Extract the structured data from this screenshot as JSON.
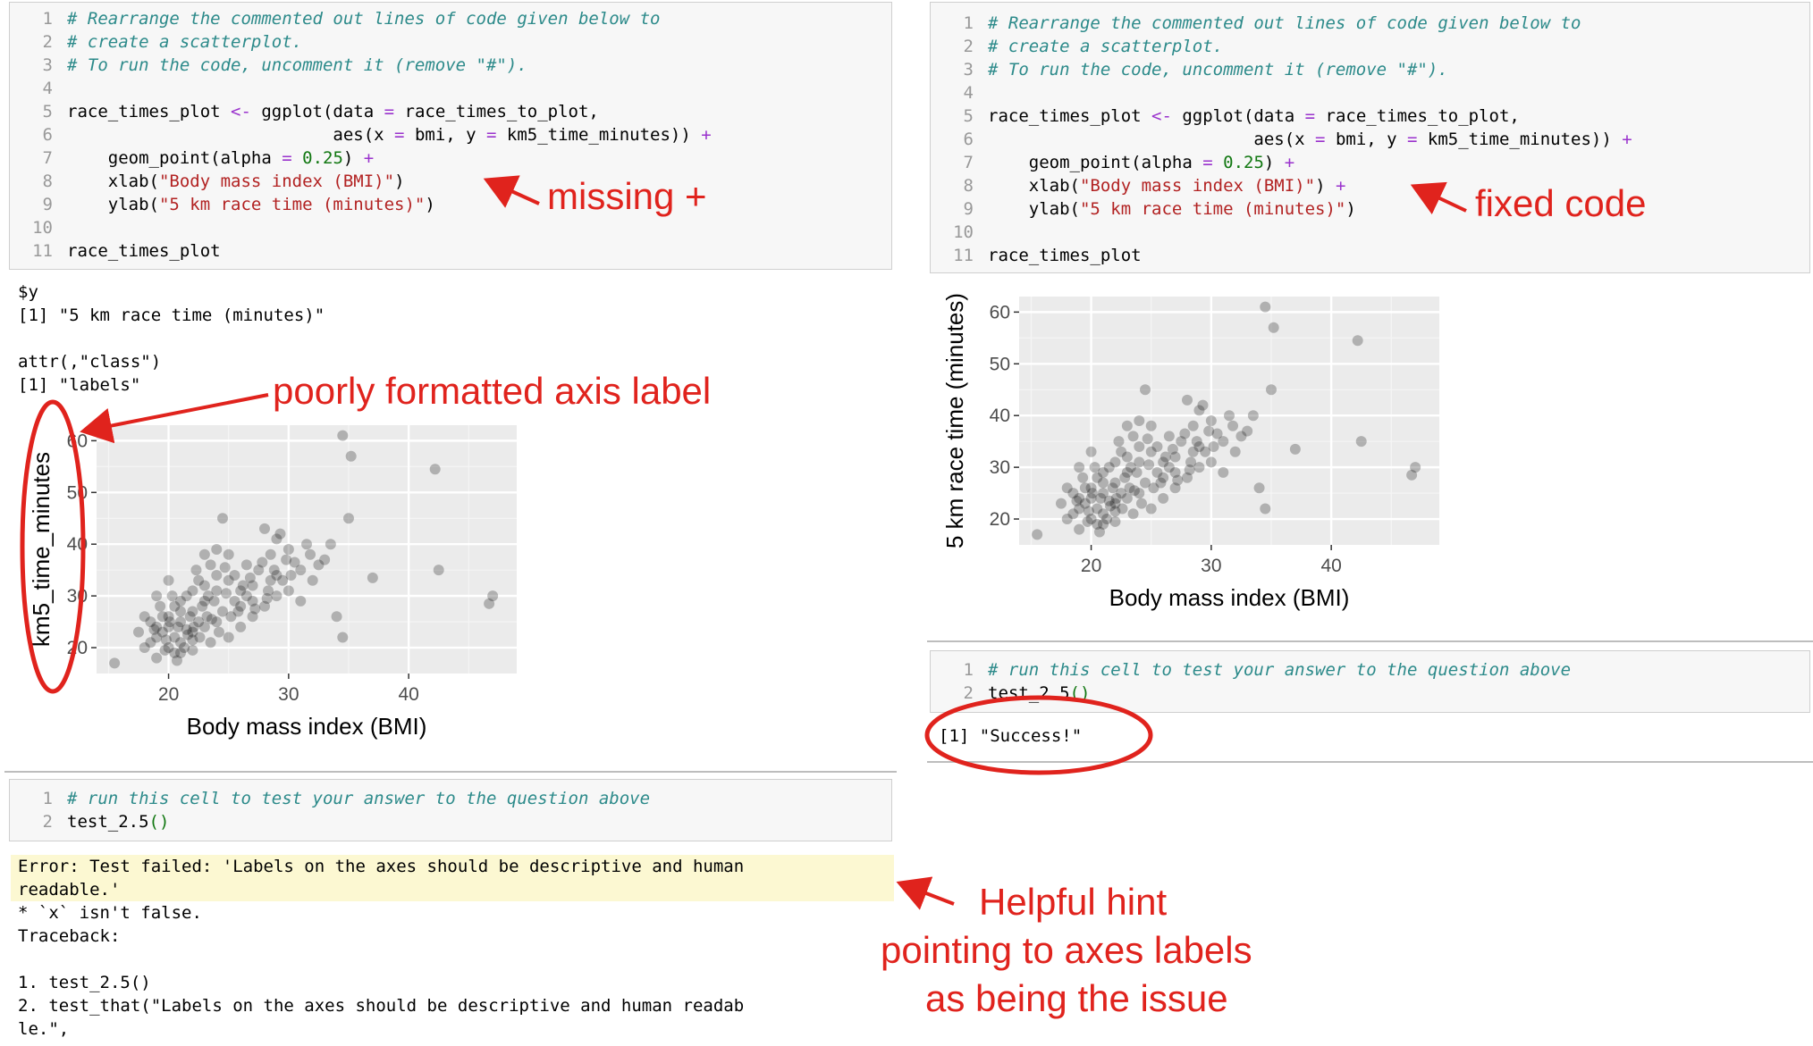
{
  "left_panel": {
    "code_cell": {
      "line_numbers": [
        "1",
        "2",
        "3",
        "4",
        "5",
        "6",
        "7",
        "8",
        "9",
        "10",
        "11"
      ],
      "comment_1": "# Rearrange the commented out lines of code given below to",
      "comment_2": "# create a scatterplot.",
      "comment_3": "# To run the code, uncomment it (remove \"#\").",
      "line5_a": "race_times_plot ",
      "line5_op": "<-",
      "line5_b": " ggplot(data ",
      "line5_eq": "=",
      "line5_c": " race_times_to_plot,",
      "line6_a": "                          aes(x ",
      "line6_eq1": "=",
      "line6_b": " bmi, y ",
      "line6_eq2": "=",
      "line6_c": " km5_time_minutes)) ",
      "line6_plus": "+",
      "line7_a": "    geom_point(alpha ",
      "line7_eq": "=",
      "line7_num": "0.25",
      "line7_b": ") ",
      "line7_plus": "+",
      "line8_a": "    xlab(",
      "line8_str": "\"Body mass index (BMI)\"",
      "line8_b": ")",
      "line9_a": "    ylab(",
      "line9_str": "\"5 km race time (minutes)\"",
      "line9_b": ")",
      "line11": "race_times_plot"
    },
    "output_lines": [
      "$y",
      "[1] \"5 km race time (minutes)\"",
      "",
      "attr(,\"class\")",
      "[1] \"labels\""
    ],
    "plot": {
      "xlabel": "Body mass index (BMI)",
      "ylabel": "km5_time_minutes",
      "x_ticks": [
        "20",
        "30",
        "40"
      ],
      "y_ticks": [
        "20",
        "30",
        "40",
        "50",
        "60"
      ]
    },
    "test_cell": {
      "line_numbers": [
        "1",
        "2"
      ],
      "comment": "# run this cell to test your answer to the question above",
      "call": "test_2.5",
      "parens": "()"
    },
    "error_lines": [
      "Error: Test failed: 'Labels on the axes should be descriptive and human",
      "readable.'"
    ],
    "traceback_lines": [
      "* `x` isn't false.",
      "Traceback:",
      "",
      "1. test_2.5()",
      "2. test_that(\"Labels on the axes should be descriptive and human readab",
      "le.\","
    ]
  },
  "right_panel": {
    "code_cell": {
      "line_numbers": [
        "1",
        "2",
        "3",
        "4",
        "5",
        "6",
        "7",
        "8",
        "9",
        "10",
        "11"
      ],
      "comment_1": "# Rearrange the commented out lines of code given below to",
      "comment_2": "# create a scatterplot.",
      "comment_3": "# To run the code, uncomment it (remove \"#\").",
      "line5_a": "race_times_plot ",
      "line5_op": "<-",
      "line5_b": " ggplot(data ",
      "line5_eq": "=",
      "line5_c": " race_times_to_plot,",
      "line6_a": "                          aes(x ",
      "line6_eq1": "=",
      "line6_b": " bmi, y ",
      "line6_eq2": "=",
      "line6_c": " km5_time_minutes)) ",
      "line6_plus": "+",
      "line7_a": "    geom_point(alpha ",
      "line7_eq": "=",
      "line7_num": "0.25",
      "line7_b": ") ",
      "line7_plus": "+",
      "line8_a": "    xlab(",
      "line8_str": "\"Body mass index (BMI)\"",
      "line8_b": ") ",
      "line8_plus": "+",
      "line9_a": "    ylab(",
      "line9_str": "\"5 km race time (minutes)\"",
      "line9_b": ")",
      "line11": "race_times_plot"
    },
    "plot": {
      "xlabel": "Body mass index (BMI)",
      "ylabel": "5 km race time (minutes)",
      "x_ticks": [
        "20",
        "30",
        "40"
      ],
      "y_ticks": [
        "20",
        "30",
        "40",
        "50",
        "60"
      ]
    },
    "test_cell": {
      "line_numbers": [
        "1",
        "2"
      ],
      "comment": "# run this cell to test your answer to the question above",
      "call": "test_2.5",
      "parens": "()"
    },
    "output": "[1] \"Success!\""
  },
  "annotations": {
    "missing_plus": "missing +",
    "fixed_code": "fixed code",
    "poor_label": "poorly formatted axis label",
    "hint_1": "Helpful hint",
    "hint_2": "pointing to axes labels",
    "hint_3": "as being the issue"
  },
  "colors": {
    "annotation_red": "#e0231d",
    "comment_teal": "#2c8a8a",
    "string_red": "#b22222",
    "number_green": "#117711",
    "operator_purple": "#9a32cd",
    "panel_grey": "#ebebeb",
    "error_yellow": "#fcf8d2"
  },
  "chart_data": [
    {
      "type": "scatter",
      "xlabel": "Body mass index (BMI)",
      "ylabel": "km5_time_minutes",
      "xlim": [
        14,
        49
      ],
      "ylim": [
        15,
        63
      ],
      "x_ticks": [
        20,
        30,
        40
      ],
      "y_ticks": [
        20,
        30,
        40,
        50,
        60
      ],
      "grid": true,
      "points": [
        [
          15.5,
          17
        ],
        [
          34.5,
          61
        ],
        [
          35.2,
          57
        ],
        [
          42.2,
          54.5
        ],
        [
          42.5,
          35
        ],
        [
          35,
          45
        ],
        [
          37,
          33.5
        ],
        [
          34,
          26
        ],
        [
          34.5,
          22
        ],
        [
          47,
          30
        ],
        [
          46.7,
          28.5
        ],
        [
          24.5,
          45
        ],
        [
          28,
          43
        ],
        [
          29.3,
          42
        ],
        [
          29,
          41
        ],
        [
          30,
          39
        ],
        [
          31.5,
          40
        ],
        [
          32.5,
          36
        ],
        [
          31,
          35
        ],
        [
          29,
          34
        ],
        [
          28.5,
          33
        ],
        [
          27,
          32
        ],
        [
          26.5,
          30
        ],
        [
          25.5,
          34
        ],
        [
          24,
          31
        ],
        [
          23,
          29
        ],
        [
          22,
          27
        ],
        [
          21,
          25
        ],
        [
          20,
          24
        ],
        [
          19.5,
          23
        ],
        [
          19,
          22
        ],
        [
          18.5,
          21
        ],
        [
          18,
          20
        ],
        [
          20.5,
          28
        ],
        [
          21.5,
          30
        ],
        [
          22.5,
          33
        ],
        [
          23.5,
          36
        ],
        [
          20,
          33
        ],
        [
          19,
          30
        ],
        [
          18,
          26
        ],
        [
          17.5,
          23
        ],
        [
          19,
          18
        ],
        [
          20.5,
          19
        ],
        [
          22,
          19.5
        ],
        [
          23.5,
          21
        ],
        [
          25,
          22
        ],
        [
          26,
          24
        ],
        [
          27,
          26
        ],
        [
          28,
          28
        ],
        [
          29,
          30
        ],
        [
          30,
          31
        ],
        [
          24,
          25
        ],
        [
          22,
          23
        ],
        [
          21,
          21
        ],
        [
          20,
          20
        ],
        [
          19.5,
          26
        ],
        [
          21,
          27
        ],
        [
          22.5,
          25
        ],
        [
          23,
          24
        ],
        [
          24.5,
          27
        ],
        [
          25.5,
          29
        ],
        [
          26,
          31
        ],
        [
          27.5,
          35
        ],
        [
          28.5,
          38
        ],
        [
          25,
          38
        ],
        [
          24,
          39
        ],
        [
          23,
          38
        ],
        [
          26.5,
          36
        ],
        [
          33,
          37
        ],
        [
          32,
          33
        ],
        [
          30.5,
          36.5
        ],
        [
          31,
          29
        ],
        [
          20.5,
          22
        ],
        [
          21.5,
          23.5
        ],
        [
          22,
          21.5
        ],
        [
          19,
          24
        ],
        [
          18.5,
          25
        ],
        [
          20,
          26
        ],
        [
          21,
          29
        ],
        [
          22,
          31
        ],
        [
          23,
          32
        ],
        [
          24,
          34
        ],
        [
          25,
          33
        ],
        [
          26,
          28
        ],
        [
          27,
          29
        ],
        [
          28.3,
          31
        ],
        [
          29.5,
          33
        ],
        [
          30.2,
          34
        ],
        [
          21.8,
          26
        ],
        [
          22.8,
          28
        ],
        [
          19.8,
          21.5
        ],
        [
          20.8,
          24
        ],
        [
          23.8,
          29
        ],
        [
          24.8,
          30.5
        ],
        [
          26.8,
          33.5
        ],
        [
          27.8,
          36.5
        ],
        [
          21.3,
          20
        ],
        [
          22.6,
          22
        ],
        [
          23.2,
          26
        ],
        [
          24.2,
          23
        ],
        [
          25.2,
          26
        ],
        [
          19.3,
          28
        ],
        [
          18.8,
          23.5
        ],
        [
          20.3,
          30
        ],
        [
          22.3,
          35
        ],
        [
          23.3,
          30
        ],
        [
          24.7,
          35.5
        ],
        [
          26.2,
          32
        ],
        [
          28.8,
          35
        ],
        [
          29.8,
          37
        ],
        [
          31.8,
          38
        ],
        [
          33.5,
          40
        ],
        [
          21,
          19
        ],
        [
          19.7,
          19.5
        ],
        [
          20.7,
          17.5
        ],
        [
          25.8,
          27
        ],
        [
          27.2,
          27.5
        ],
        [
          28.2,
          29.5
        ],
        [
          22.1,
          24
        ],
        [
          21.6,
          22.5
        ],
        [
          20.1,
          25
        ],
        [
          23.6,
          25.5
        ]
      ]
    },
    {
      "type": "scatter",
      "xlabel": "Body mass index (BMI)",
      "ylabel": "5 km race time (minutes)",
      "xlim": [
        14,
        49
      ],
      "ylim": [
        15,
        63
      ],
      "x_ticks": [
        20,
        30,
        40
      ],
      "y_ticks": [
        20,
        30,
        40,
        50,
        60
      ],
      "grid": true,
      "points": [
        [
          15.5,
          17
        ],
        [
          34.5,
          61
        ],
        [
          35.2,
          57
        ],
        [
          42.2,
          54.5
        ],
        [
          42.5,
          35
        ],
        [
          35,
          45
        ],
        [
          37,
          33.5
        ],
        [
          34,
          26
        ],
        [
          34.5,
          22
        ],
        [
          47,
          30
        ],
        [
          46.7,
          28.5
        ],
        [
          24.5,
          45
        ],
        [
          28,
          43
        ],
        [
          29.3,
          42
        ],
        [
          29,
          41
        ],
        [
          30,
          39
        ],
        [
          31.5,
          40
        ],
        [
          32.5,
          36
        ],
        [
          31,
          35
        ],
        [
          29,
          34
        ],
        [
          28.5,
          33
        ],
        [
          27,
          32
        ],
        [
          26.5,
          30
        ],
        [
          25.5,
          34
        ],
        [
          24,
          31
        ],
        [
          23,
          29
        ],
        [
          22,
          27
        ],
        [
          21,
          25
        ],
        [
          20,
          24
        ],
        [
          19.5,
          23
        ],
        [
          19,
          22
        ],
        [
          18.5,
          21
        ],
        [
          18,
          20
        ],
        [
          20.5,
          28
        ],
        [
          21.5,
          30
        ],
        [
          22.5,
          33
        ],
        [
          23.5,
          36
        ],
        [
          20,
          33
        ],
        [
          19,
          30
        ],
        [
          18,
          26
        ],
        [
          17.5,
          23
        ],
        [
          19,
          18
        ],
        [
          20.5,
          19
        ],
        [
          22,
          19.5
        ],
        [
          23.5,
          21
        ],
        [
          25,
          22
        ],
        [
          26,
          24
        ],
        [
          27,
          26
        ],
        [
          28,
          28
        ],
        [
          29,
          30
        ],
        [
          30,
          31
        ],
        [
          24,
          25
        ],
        [
          22,
          23
        ],
        [
          21,
          21
        ],
        [
          20,
          20
        ],
        [
          19.5,
          26
        ],
        [
          21,
          27
        ],
        [
          22.5,
          25
        ],
        [
          23,
          24
        ],
        [
          24.5,
          27
        ],
        [
          25.5,
          29
        ],
        [
          26,
          31
        ],
        [
          27.5,
          35
        ],
        [
          28.5,
          38
        ],
        [
          25,
          38
        ],
        [
          24,
          39
        ],
        [
          23,
          38
        ],
        [
          26.5,
          36
        ],
        [
          33,
          37
        ],
        [
          32,
          33
        ],
        [
          30.5,
          36.5
        ],
        [
          31,
          29
        ],
        [
          20.5,
          22
        ],
        [
          21.5,
          23.5
        ],
        [
          22,
          21.5
        ],
        [
          19,
          24
        ],
        [
          18.5,
          25
        ],
        [
          20,
          26
        ],
        [
          21,
          29
        ],
        [
          22,
          31
        ],
        [
          23,
          32
        ],
        [
          24,
          34
        ],
        [
          25,
          33
        ],
        [
          26,
          28
        ],
        [
          27,
          29
        ],
        [
          28.3,
          31
        ],
        [
          29.5,
          33
        ],
        [
          30.2,
          34
        ],
        [
          21.8,
          26
        ],
        [
          22.8,
          28
        ],
        [
          19.8,
          21.5
        ],
        [
          20.8,
          24
        ],
        [
          23.8,
          29
        ],
        [
          24.8,
          30.5
        ],
        [
          26.8,
          33.5
        ],
        [
          27.8,
          36.5
        ],
        [
          21.3,
          20
        ],
        [
          22.6,
          22
        ],
        [
          23.2,
          26
        ],
        [
          24.2,
          23
        ],
        [
          25.2,
          26
        ],
        [
          19.3,
          28
        ],
        [
          18.8,
          23.5
        ],
        [
          20.3,
          30
        ],
        [
          22.3,
          35
        ],
        [
          23.3,
          30
        ],
        [
          24.7,
          35.5
        ],
        [
          26.2,
          32
        ],
        [
          28.8,
          35
        ],
        [
          29.8,
          37
        ],
        [
          31.8,
          38
        ],
        [
          33.5,
          40
        ],
        [
          21,
          19
        ],
        [
          19.7,
          19.5
        ],
        [
          20.7,
          17.5
        ],
        [
          25.8,
          27
        ],
        [
          27.2,
          27.5
        ],
        [
          28.2,
          29.5
        ],
        [
          22.1,
          24
        ],
        [
          21.6,
          22.5
        ],
        [
          20.1,
          25
        ],
        [
          23.6,
          25.5
        ]
      ]
    }
  ]
}
